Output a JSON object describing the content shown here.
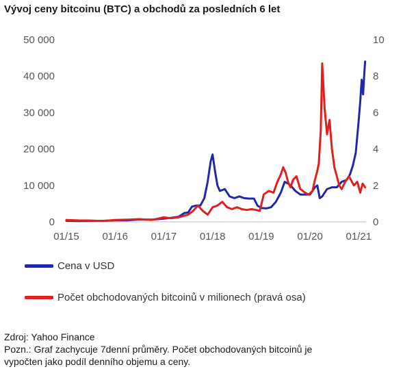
{
  "title": "Vývoj ceny bitcoinu (BTC) a obchodů za posledních 6 let",
  "legend": {
    "series1": "Cena v USD",
    "series2": "Počet obchodovaných bitcoinů v milionech (pravá osa)"
  },
  "source": "Zdroj: Yahoo Finance",
  "note_line1": "Pozn.: Graf zachycuje 7denní průměry. Počet obchodovaných bitcoinů je",
  "note_line2": "vypočten jako podíl denního objemu a ceny.",
  "colors": {
    "price": "#2127a8",
    "volume": "#e0201e"
  },
  "chart_data": {
    "type": "line",
    "xlabel": "",
    "ylabel": "",
    "x_ticks": [
      "01/15",
      "01/16",
      "01/17",
      "01/18",
      "01/19",
      "01/20",
      "01/21"
    ],
    "y_left_ticks": [
      "0",
      "10 000",
      "20 000",
      "30 000",
      "40 000",
      "50 000"
    ],
    "y_right_ticks": [
      "0",
      "2",
      "4",
      "6",
      "8",
      "10"
    ],
    "ylim_left": [
      0,
      50000
    ],
    "ylim_right": [
      0,
      10
    ],
    "x_range": [
      2015.0,
      2021.15
    ],
    "grid": false,
    "legend_position": "bottom",
    "series": [
      {
        "name": "Cena v USD",
        "axis": "left",
        "x": [
          2015.0,
          2015.25,
          2015.5,
          2015.75,
          2016.0,
          2016.25,
          2016.5,
          2016.75,
          2017.0,
          2017.15,
          2017.3,
          2017.42,
          2017.5,
          2017.58,
          2017.67,
          2017.75,
          2017.83,
          2017.9,
          2017.96,
          2018.0,
          2018.05,
          2018.1,
          2018.15,
          2018.25,
          2018.35,
          2018.45,
          2018.55,
          2018.65,
          2018.75,
          2018.85,
          2018.92,
          2019.0,
          2019.1,
          2019.2,
          2019.3,
          2019.4,
          2019.48,
          2019.55,
          2019.6,
          2019.7,
          2019.8,
          2019.9,
          2020.0,
          2020.1,
          2020.15,
          2020.2,
          2020.25,
          2020.35,
          2020.45,
          2020.55,
          2020.65,
          2020.75,
          2020.82,
          2020.88,
          2020.94,
          2021.0,
          2021.03,
          2021.06,
          2021.09,
          2021.11,
          2021.13
        ],
        "values": [
          300,
          250,
          260,
          280,
          430,
          420,
          650,
          620,
          900,
          1100,
          1400,
          2400,
          2600,
          4200,
          4500,
          4500,
          6500,
          11000,
          16500,
          18500,
          14000,
          10000,
          8500,
          9000,
          7000,
          6500,
          7000,
          6500,
          6400,
          6400,
          4500,
          3800,
          3700,
          4000,
          5500,
          8000,
          11000,
          10500,
          10000,
          8500,
          7500,
          7500,
          7500,
          9500,
          10000,
          6500,
          7000,
          9000,
          9500,
          9500,
          11000,
          11500,
          13000,
          15500,
          19000,
          28000,
          33000,
          39000,
          35000,
          40000,
          44000
        ]
      },
      {
        "name": "Počet obchodovaných bitcoinů v milionech (pravá osa)",
        "axis": "right",
        "x": [
          2015.0,
          2015.25,
          2015.5,
          2015.75,
          2016.0,
          2016.25,
          2016.5,
          2016.75,
          2017.0,
          2017.15,
          2017.3,
          2017.5,
          2017.6,
          2017.7,
          2017.8,
          2017.9,
          2018.0,
          2018.1,
          2018.2,
          2018.3,
          2018.4,
          2018.5,
          2018.6,
          2018.7,
          2018.8,
          2018.9,
          2018.97,
          2019.05,
          2019.15,
          2019.25,
          2019.33,
          2019.4,
          2019.45,
          2019.5,
          2019.55,
          2019.6,
          2019.65,
          2019.72,
          2019.8,
          2019.9,
          2019.97,
          2020.05,
          2020.1,
          2020.15,
          2020.18,
          2020.22,
          2020.25,
          2020.3,
          2020.35,
          2020.4,
          2020.45,
          2020.5,
          2020.55,
          2020.6,
          2020.65,
          2020.72,
          2020.8,
          2020.9,
          2020.97,
          2021.03,
          2021.08,
          2021.13
        ],
        "values": [
          0.1,
          0.08,
          0.07,
          0.05,
          0.1,
          0.12,
          0.15,
          0.1,
          0.25,
          0.2,
          0.25,
          0.4,
          0.6,
          0.9,
          0.6,
          0.4,
          0.8,
          0.9,
          1.1,
          0.8,
          0.7,
          0.8,
          0.7,
          0.65,
          0.7,
          0.65,
          0.6,
          1.5,
          1.7,
          1.6,
          2.2,
          2.6,
          3.0,
          2.7,
          2.2,
          1.9,
          2.3,
          2.5,
          1.8,
          1.6,
          1.5,
          1.7,
          2.3,
          2.8,
          3.2,
          5.0,
          8.7,
          6.2,
          4.8,
          5.6,
          4.0,
          3.0,
          2.5,
          2.0,
          1.8,
          2.2,
          2.5,
          2.0,
          2.2,
          1.6,
          2.1,
          1.9
        ]
      }
    ]
  }
}
